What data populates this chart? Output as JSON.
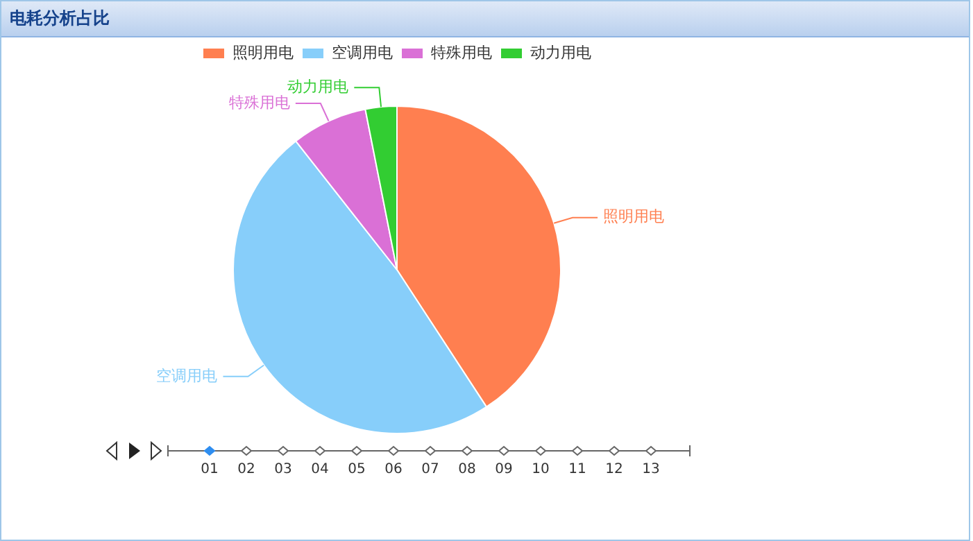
{
  "chart_data": {
    "type": "pie",
    "title": "电耗分析占比",
    "categories": [
      "照明用电",
      "空调用电",
      "特殊用电",
      "动力用电"
    ],
    "values": [
      40.8,
      48.6,
      7.5,
      3.1
    ],
    "colors": [
      "#ff7f50",
      "#87cefa",
      "#da70d6",
      "#32cd32"
    ],
    "legend": "top",
    "annotations": [
      "01",
      "02",
      "03",
      "04",
      "05",
      "06",
      "07",
      "08",
      "09",
      "10",
      "11",
      "12",
      "13"
    ]
  }
}
